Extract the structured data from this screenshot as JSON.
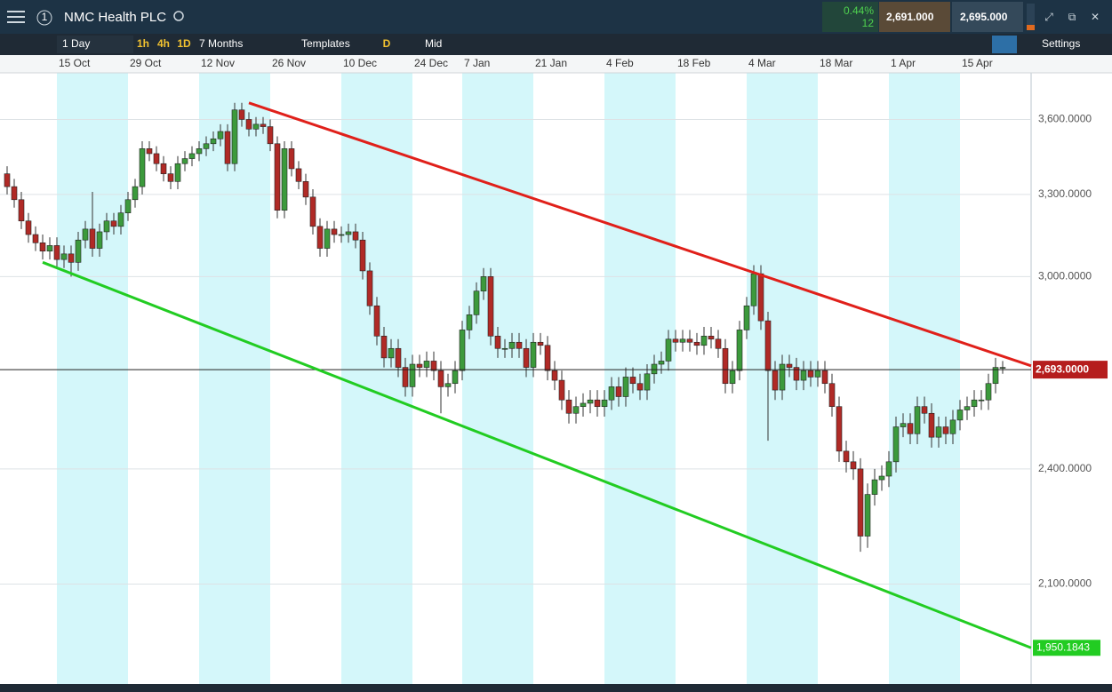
{
  "header": {
    "title": "NMC Health PLC",
    "badge": "1",
    "change": "0.44%",
    "change_count": "12",
    "sell": "2,691.000",
    "buy": "2,695.000"
  },
  "toolbar": {
    "interval": "1 Day",
    "quick": [
      "1h",
      "4h",
      "1D"
    ],
    "range": "7 Months",
    "templates": "Templates",
    "day": "D",
    "price": "Mid",
    "settings": "Settings"
  },
  "chart_data": {
    "type": "candlestick",
    "log_scale": true,
    "grid": true,
    "up_color": "#3c9a3c",
    "down_color": "#b02a26",
    "ylim": [
      1870,
      3800
    ],
    "yticks": [
      {
        "value": 2100,
        "label": "2,100.0000"
      },
      {
        "value": 2400,
        "label": "2,400.0000"
      },
      {
        "value": 3000,
        "label": "3,000.0000"
      },
      {
        "value": 3300,
        "label": "3,300.0000"
      },
      {
        "value": 3600,
        "label": "3,600.0000"
      }
    ],
    "categories": [
      null,
      null,
      null,
      null,
      null,
      null,
      null,
      "15 Oct",
      null,
      null,
      null,
      null,
      null,
      null,
      null,
      null,
      null,
      "29 Oct",
      null,
      null,
      null,
      null,
      null,
      null,
      null,
      null,
      null,
      "12 Nov",
      null,
      null,
      null,
      null,
      null,
      null,
      null,
      null,
      null,
      "26 Nov",
      null,
      null,
      null,
      null,
      null,
      null,
      null,
      null,
      null,
      "10 Dec",
      null,
      null,
      null,
      null,
      null,
      null,
      null,
      null,
      null,
      "24 Dec",
      null,
      null,
      null,
      null,
      null,
      null,
      "7 Jan",
      null,
      null,
      null,
      null,
      null,
      null,
      null,
      null,
      null,
      "21 Jan",
      null,
      null,
      null,
      null,
      null,
      null,
      null,
      null,
      null,
      "4 Feb",
      null,
      null,
      null,
      null,
      null,
      null,
      null,
      null,
      null,
      "18 Feb",
      null,
      null,
      null,
      null,
      null,
      null,
      null,
      null,
      null,
      "4 Mar",
      null,
      null,
      null,
      null,
      null,
      null,
      null,
      null,
      null,
      "18 Mar",
      null,
      null,
      null,
      null,
      null,
      null,
      null,
      null,
      null,
      "1 Apr",
      null,
      null,
      null,
      null,
      null,
      null,
      null,
      null,
      null,
      "15 Apr",
      null,
      null,
      null,
      null,
      null,
      null
    ],
    "open": [
      3380,
      3330,
      3280,
      3200,
      3150,
      3120,
      3090,
      3110,
      3060,
      3080,
      3050,
      3130,
      3170,
      3100,
      3160,
      3200,
      3180,
      3230,
      3280,
      3330,
      3480,
      3460,
      3420,
      3380,
      3350,
      3420,
      3440,
      3460,
      3480,
      3500,
      3520,
      3550,
      3420,
      3640,
      3600,
      3560,
      3580,
      3570,
      3500,
      3240,
      3480,
      3400,
      3350,
      3290,
      3180,
      3100,
      3170,
      3150,
      3150,
      3160,
      3130,
      3020,
      2900,
      2800,
      2730,
      2760,
      2700,
      2640,
      2710,
      2700,
      2720,
      2690,
      2640,
      2650,
      2690,
      2820,
      2870,
      2950,
      3000,
      2800,
      2760,
      2760,
      2780,
      2760,
      2700,
      2780,
      2770,
      2690,
      2660,
      2600,
      2560,
      2580,
      2590,
      2600,
      2580,
      2600,
      2640,
      2610,
      2670,
      2650,
      2630,
      2680,
      2710,
      2720,
      2790,
      2780,
      2790,
      2780,
      2770,
      2800,
      2790,
      2760,
      2650,
      2690,
      2820,
      2900,
      3010,
      2850,
      2690,
      2630,
      2710,
      2700,
      2660,
      2690,
      2670,
      2690,
      2650,
      2580,
      2450,
      2420,
      2400,
      2220,
      2330,
      2370,
      2380,
      2420,
      2520,
      2530,
      2500,
      2580,
      2560,
      2490,
      2520,
      2500,
      2540,
      2570,
      2580,
      2600,
      2600,
      2650,
      2700
    ],
    "high": [
      3410,
      3360,
      3310,
      3230,
      3180,
      3150,
      3140,
      3140,
      3110,
      3110,
      3160,
      3200,
      3310,
      3190,
      3230,
      3230,
      3260,
      3310,
      3360,
      3510,
      3510,
      3490,
      3450,
      3410,
      3450,
      3470,
      3490,
      3510,
      3530,
      3550,
      3580,
      3580,
      3670,
      3670,
      3630,
      3610,
      3610,
      3600,
      3530,
      3510,
      3510,
      3430,
      3380,
      3320,
      3210,
      3200,
      3200,
      3180,
      3190,
      3190,
      3160,
      3050,
      2930,
      2830,
      2790,
      2790,
      2730,
      2740,
      2740,
      2750,
      2750,
      2720,
      2680,
      2720,
      2850,
      2900,
      2980,
      3030,
      3030,
      2830,
      2790,
      2810,
      2810,
      2790,
      2810,
      2810,
      2800,
      2720,
      2690,
      2630,
      2610,
      2620,
      2630,
      2630,
      2630,
      2670,
      2670,
      2700,
      2700,
      2680,
      2710,
      2740,
      2750,
      2820,
      2820,
      2820,
      2820,
      2810,
      2830,
      2830,
      2820,
      2790,
      2720,
      2850,
      2930,
      3040,
      3040,
      2880,
      2720,
      2740,
      2740,
      2730,
      2720,
      2720,
      2720,
      2720,
      2680,
      2610,
      2480,
      2450,
      2430,
      2360,
      2400,
      2410,
      2450,
      2550,
      2560,
      2560,
      2610,
      2610,
      2590,
      2550,
      2550,
      2570,
      2600,
      2610,
      2630,
      2630,
      2680,
      2730,
      2720
    ],
    "low": [
      3300,
      3250,
      3170,
      3120,
      3090,
      3060,
      3060,
      3030,
      3030,
      3000,
      3020,
      3100,
      3070,
      3070,
      3130,
      3150,
      3150,
      3200,
      3250,
      3300,
      3430,
      3390,
      3350,
      3320,
      3320,
      3390,
      3410,
      3430,
      3450,
      3470,
      3490,
      3390,
      3390,
      3570,
      3530,
      3530,
      3540,
      3470,
      3210,
      3210,
      3370,
      3320,
      3260,
      3150,
      3070,
      3070,
      3120,
      3120,
      3120,
      3100,
      2990,
      2870,
      2770,
      2700,
      2700,
      2670,
      2610,
      2610,
      2670,
      2670,
      2660,
      2560,
      2610,
      2620,
      2660,
      2790,
      2840,
      2920,
      2770,
      2730,
      2730,
      2730,
      2730,
      2670,
      2670,
      2740,
      2660,
      2630,
      2570,
      2530,
      2530,
      2550,
      2560,
      2550,
      2550,
      2570,
      2580,
      2580,
      2620,
      2600,
      2600,
      2650,
      2680,
      2690,
      2750,
      2750,
      2750,
      2740,
      2740,
      2760,
      2730,
      2620,
      2620,
      2660,
      2790,
      2870,
      2820,
      2480,
      2600,
      2600,
      2670,
      2630,
      2630,
      2640,
      2640,
      2620,
      2550,
      2420,
      2390,
      2370,
      2180,
      2190,
      2300,
      2340,
      2350,
      2390,
      2490,
      2470,
      2470,
      2530,
      2460,
      2460,
      2470,
      2470,
      2510,
      2540,
      2550,
      2570,
      2570,
      2620,
      2680
    ],
    "close": [
      3330,
      3280,
      3200,
      3150,
      3120,
      3090,
      3110,
      3060,
      3080,
      3050,
      3130,
      3170,
      3100,
      3160,
      3200,
      3180,
      3230,
      3280,
      3330,
      3480,
      3460,
      3420,
      3380,
      3350,
      3420,
      3440,
      3460,
      3480,
      3500,
      3520,
      3550,
      3420,
      3640,
      3600,
      3560,
      3580,
      3570,
      3500,
      3240,
      3480,
      3400,
      3350,
      3290,
      3180,
      3100,
      3170,
      3150,
      3150,
      3160,
      3130,
      3020,
      2900,
      2800,
      2730,
      2760,
      2700,
      2640,
      2710,
      2700,
      2720,
      2690,
      2640,
      2650,
      2690,
      2820,
      2870,
      2950,
      3000,
      2800,
      2760,
      2760,
      2780,
      2760,
      2700,
      2780,
      2770,
      2690,
      2660,
      2600,
      2560,
      2580,
      2590,
      2600,
      2580,
      2600,
      2640,
      2610,
      2670,
      2650,
      2630,
      2680,
      2710,
      2720,
      2790,
      2780,
      2790,
      2780,
      2770,
      2800,
      2790,
      2760,
      2650,
      2690,
      2820,
      2900,
      3010,
      2850,
      2690,
      2630,
      2710,
      2700,
      2660,
      2690,
      2670,
      2690,
      2650,
      2580,
      2450,
      2420,
      2400,
      2220,
      2330,
      2370,
      2380,
      2420,
      2520,
      2530,
      2500,
      2580,
      2560,
      2490,
      2520,
      2500,
      2540,
      2570,
      2580,
      2600,
      2600,
      2650,
      2700,
      2700
    ],
    "last_price": {
      "value": 2693,
      "label": "2,693.0000",
      "color": "#b51d1d"
    },
    "trendlines": [
      {
        "color": "#e0201a",
        "start_index": 34,
        "start_value": 3670,
        "end_value": 2705
      },
      {
        "color": "#22cc22",
        "start_index": 5,
        "start_value": 3050,
        "end_value": 1950.1843,
        "end_label": "1,950.1843"
      }
    ]
  }
}
